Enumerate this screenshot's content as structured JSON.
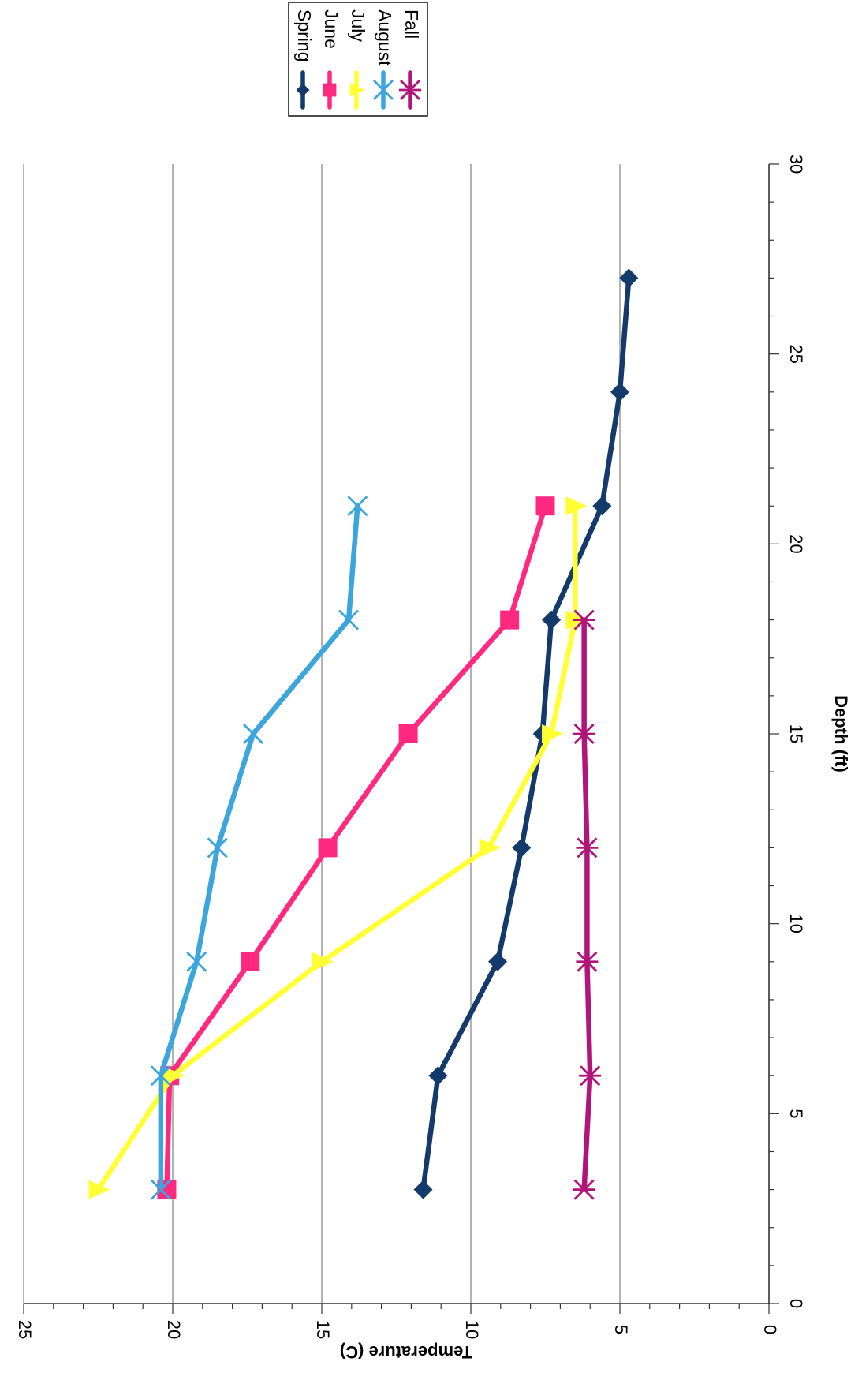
{
  "chart_data": {
    "type": "line",
    "xlabel": "Depth (ft)",
    "ylabel": "Temperature (C)",
    "xlim": [
      0,
      30
    ],
    "ylim": [
      0,
      25
    ],
    "x_ticks": [
      "0",
      "5",
      "10",
      "15",
      "20",
      "25",
      "30"
    ],
    "y_ticks": [
      "0",
      "5",
      "10",
      "15",
      "20",
      "25"
    ],
    "grid": true,
    "legend_position": "top-right",
    "series": [
      {
        "name": "Spring",
        "color": "#143a6b",
        "marker": "diamond",
        "x": [
          3,
          6,
          9,
          12,
          15,
          18,
          21,
          24,
          27
        ],
        "y": [
          11.6,
          11.1,
          9.1,
          8.3,
          7.6,
          7.3,
          5.6,
          5.0,
          4.7
        ]
      },
      {
        "name": "June",
        "color": "#ff2a7f",
        "marker": "square",
        "x": [
          3,
          6,
          9,
          12,
          15,
          18,
          21
        ],
        "y": [
          20.2,
          20.1,
          17.4,
          14.8,
          12.1,
          8.7,
          7.5
        ]
      },
      {
        "name": "July",
        "color": "#ffff33",
        "marker": "triangle",
        "x": [
          3,
          6,
          9,
          12,
          15,
          18,
          21
        ],
        "y": [
          22.5,
          20.0,
          15.0,
          9.4,
          7.3,
          6.5,
          6.5
        ]
      },
      {
        "name": "August",
        "color": "#3ca6dc",
        "marker": "x",
        "x": [
          3,
          6,
          9,
          12,
          15,
          18,
          21
        ],
        "y": [
          20.4,
          20.4,
          19.2,
          18.5,
          17.3,
          14.1,
          13.8
        ]
      },
      {
        "name": "Fall",
        "color": "#b0157a",
        "marker": "star",
        "x": [
          3,
          6,
          9,
          12,
          15,
          18
        ],
        "y": [
          6.2,
          6.0,
          6.1,
          6.1,
          6.2,
          6.2
        ]
      }
    ]
  }
}
